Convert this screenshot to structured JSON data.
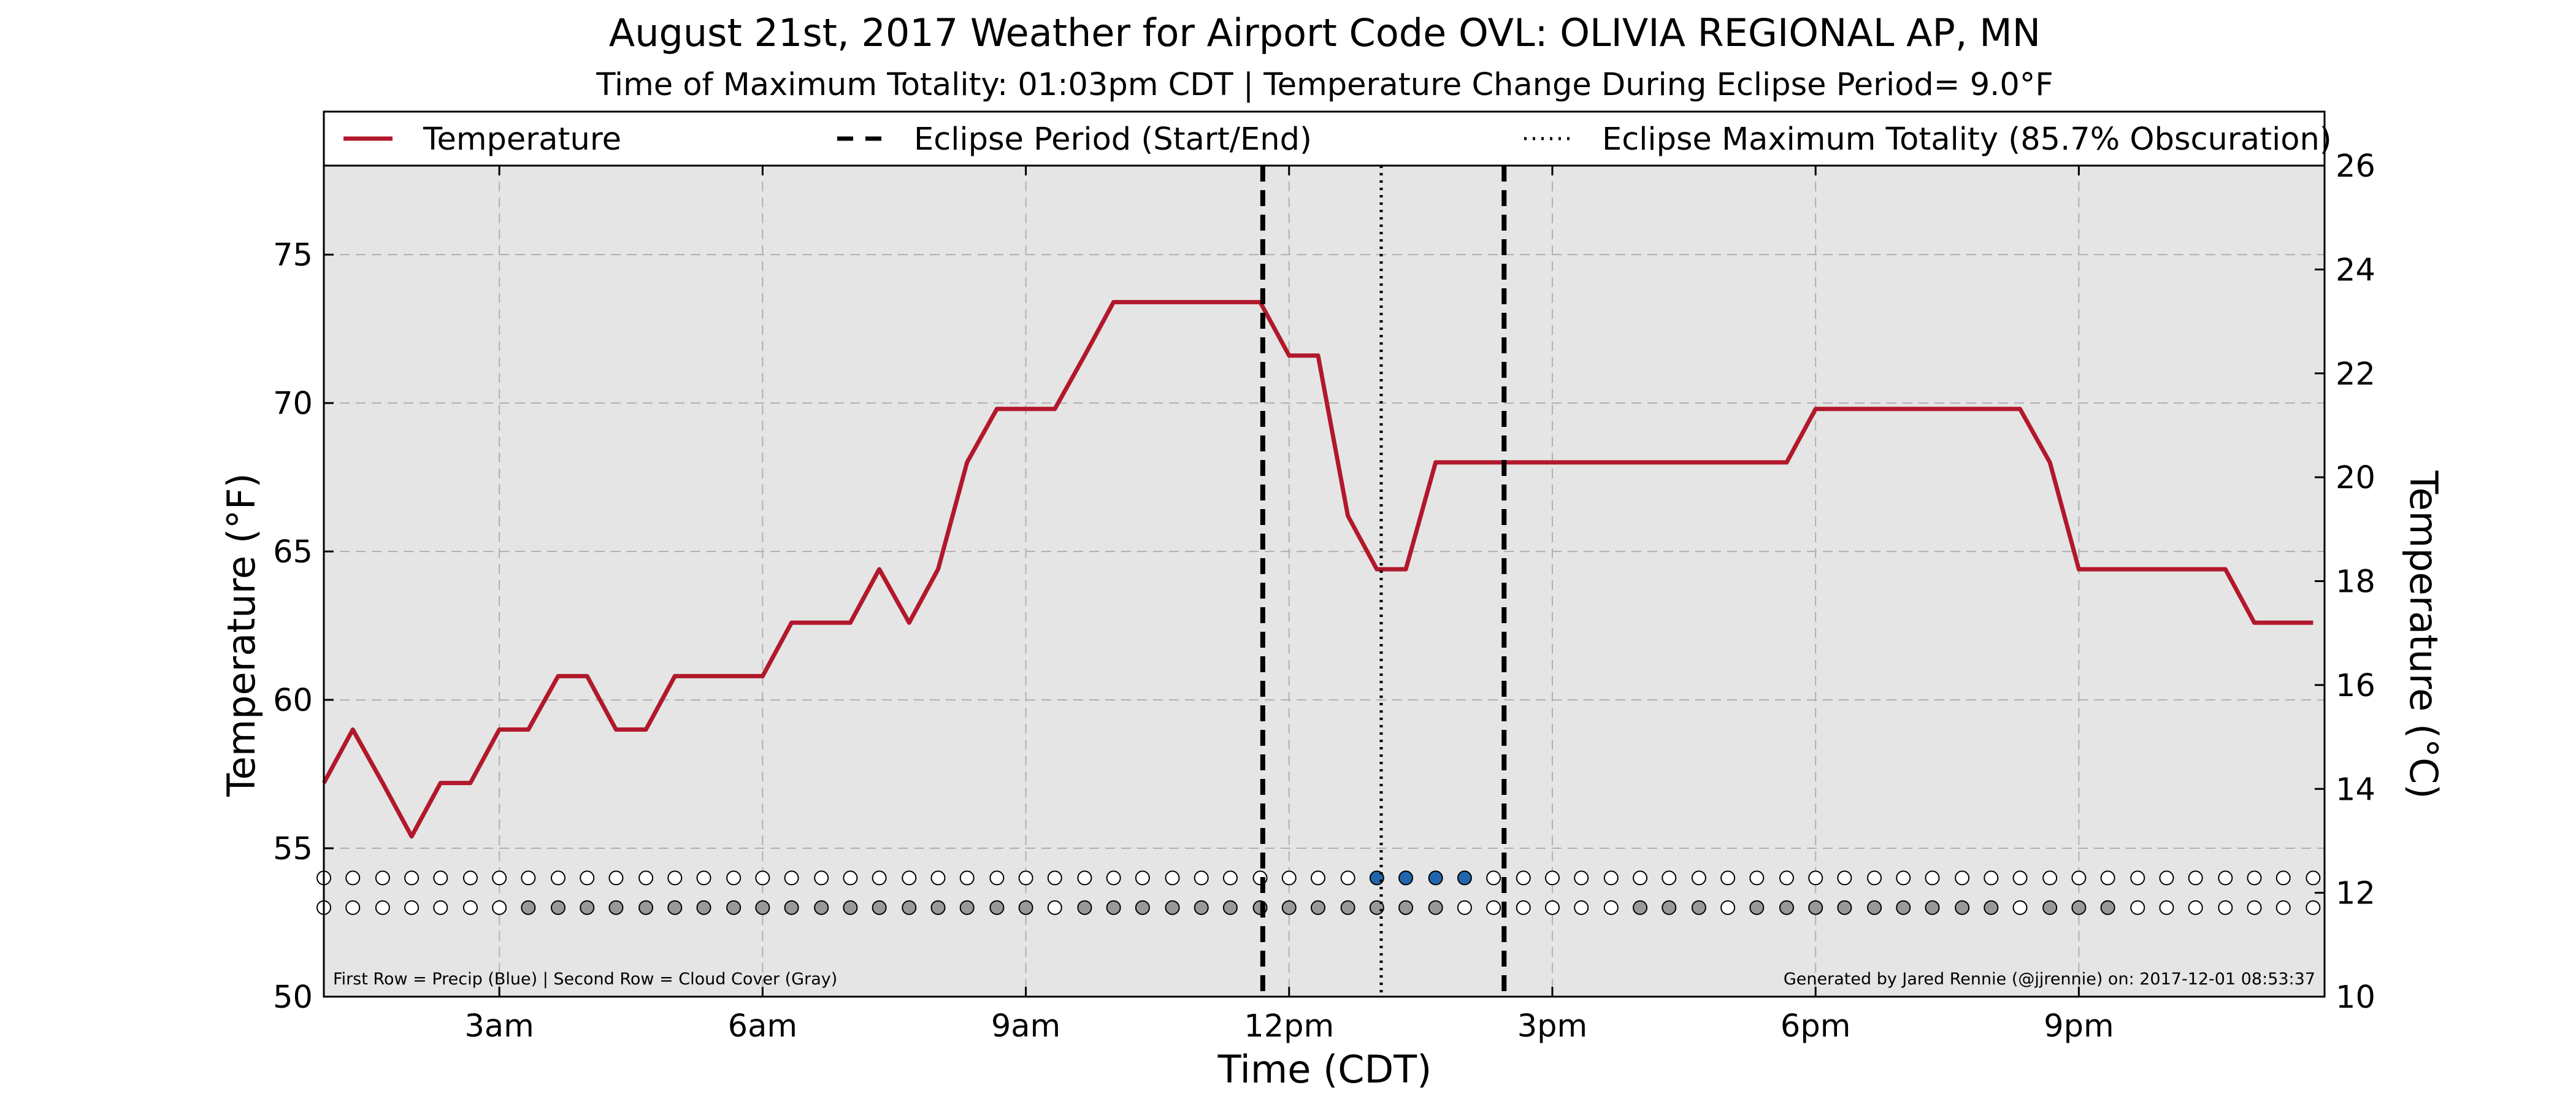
{
  "chart_data": {
    "type": "line",
    "title": "August 21st, 2017 Weather for Airport Code OVL: OLIVIA REGIONAL AP, MN",
    "subtitle": "Time of Maximum Totality: 01:03pm CDT | Temperature Change During Eclipse Period= 9.0°F",
    "xlabel": "Time (CDT)",
    "ylabel": "Temperature (°F)",
    "ylabel_right": "Temperature (°C)",
    "xlim": [
      1.0,
      23.8
    ],
    "ylim": [
      50,
      78
    ],
    "ylim_right": [
      10,
      26
    ],
    "x_ticks": [
      3,
      6,
      9,
      12,
      15,
      18,
      21
    ],
    "x_tick_labels": [
      "3am",
      "6am",
      "9am",
      "12pm",
      "3pm",
      "6pm",
      "9pm"
    ],
    "y_ticks": [
      50,
      55,
      60,
      65,
      70,
      75
    ],
    "y_tick_labels": [
      "50",
      "55",
      "60",
      "65",
      "70",
      "75"
    ],
    "y_ticks_right": [
      10,
      12,
      14,
      16,
      18,
      20,
      22,
      24,
      26
    ],
    "y_tick_labels_right": [
      "10",
      "12",
      "14",
      "16",
      "18",
      "20",
      "22",
      "24",
      "26"
    ],
    "grid": true,
    "legend_position": "top",
    "colors": {
      "plot_background": "#e5e5e5",
      "temperature_line": "#b2182b",
      "precip": "#2166ac",
      "cloud": "#999999",
      "empty_marker": "#ffffff",
      "grid": "#b0b0b0"
    },
    "legend": [
      {
        "label": "Temperature",
        "style": "solid",
        "color": "#b2182b"
      },
      {
        "label": "Eclipse Period (Start/End)",
        "style": "dashed",
        "color": "#000000"
      },
      {
        "label": "Eclipse Maximum Totality (85.7% Obscuration)",
        "style": "dotted",
        "color": "#000000"
      }
    ],
    "series": [
      {
        "name": "Temperature",
        "x": [
          1.0,
          1.33,
          1.67,
          2.0,
          2.33,
          2.67,
          3.0,
          3.33,
          3.67,
          4.0,
          4.33,
          4.67,
          5.0,
          5.33,
          5.67,
          6.0,
          6.33,
          6.67,
          7.0,
          7.33,
          7.67,
          8.0,
          8.33,
          8.67,
          9.0,
          9.33,
          9.67,
          10.0,
          10.33,
          10.67,
          11.0,
          11.33,
          11.67,
          12.0,
          12.33,
          12.67,
          13.0,
          13.33,
          13.67,
          14.0,
          14.33,
          14.67,
          15.0,
          15.33,
          15.67,
          16.0,
          16.33,
          16.67,
          17.0,
          17.33,
          17.67,
          18.0,
          18.33,
          18.67,
          19.0,
          19.33,
          19.67,
          20.0,
          20.33,
          20.67,
          21.0,
          21.33,
          21.67,
          22.0,
          22.33,
          22.67,
          23.0,
          23.33,
          23.67
        ],
        "values": [
          57.2,
          59.0,
          57.2,
          55.4,
          57.2,
          57.2,
          59.0,
          59.0,
          60.8,
          60.8,
          59.0,
          59.0,
          60.8,
          60.8,
          60.8,
          60.8,
          62.6,
          62.6,
          62.6,
          64.4,
          62.6,
          64.4,
          68.0,
          69.8,
          69.8,
          69.8,
          71.6,
          73.4,
          73.4,
          73.4,
          73.4,
          73.4,
          73.4,
          71.6,
          71.6,
          66.2,
          64.4,
          64.4,
          68.0,
          68.0,
          68.0,
          68.0,
          68.0,
          68.0,
          68.0,
          68.0,
          68.0,
          68.0,
          68.0,
          68.0,
          68.0,
          69.8,
          69.8,
          69.8,
          69.8,
          69.8,
          69.8,
          69.8,
          69.8,
          68.0,
          64.4,
          64.4,
          64.4,
          64.4,
          64.4,
          64.4,
          62.6,
          62.6,
          62.6
        ]
      }
    ],
    "eclipse_start": 11.7,
    "eclipse_end": 14.45,
    "max_totality": 13.05,
    "marker_rows": {
      "precip_y": 54.0,
      "cloud_y": 53.0,
      "x": [
        1.0,
        1.33,
        1.67,
        2.0,
        2.33,
        2.67,
        3.0,
        3.33,
        3.67,
        4.0,
        4.33,
        4.67,
        5.0,
        5.33,
        5.67,
        6.0,
        6.33,
        6.67,
        7.0,
        7.33,
        7.67,
        8.0,
        8.33,
        8.67,
        9.0,
        9.33,
        9.67,
        10.0,
        10.33,
        10.67,
        11.0,
        11.33,
        11.67,
        12.0,
        12.33,
        12.67,
        13.0,
        13.33,
        13.67,
        14.0,
        14.33,
        14.67,
        15.0,
        15.33,
        15.67,
        16.0,
        16.33,
        16.67,
        17.0,
        17.33,
        17.67,
        18.0,
        18.33,
        18.67,
        19.0,
        19.33,
        19.67,
        20.0,
        20.33,
        20.67,
        21.0,
        21.33,
        21.67,
        22.0,
        22.33,
        22.67,
        23.0,
        23.33,
        23.67
      ],
      "precip": [
        0,
        0,
        0,
        0,
        0,
        0,
        0,
        0,
        0,
        0,
        0,
        0,
        0,
        0,
        0,
        0,
        0,
        0,
        0,
        0,
        0,
        0,
        0,
        0,
        0,
        0,
        0,
        0,
        0,
        0,
        0,
        0,
        0,
        0,
        0,
        0,
        1,
        1,
        1,
        1,
        0,
        0,
        0,
        0,
        0,
        0,
        0,
        0,
        0,
        0,
        0,
        0,
        0,
        0,
        0,
        0,
        0,
        0,
        0,
        0,
        0,
        0,
        0,
        0,
        0,
        0,
        0,
        0,
        0
      ],
      "cloud": [
        0,
        0,
        0,
        0,
        0,
        0,
        0,
        1,
        1,
        1,
        1,
        1,
        1,
        1,
        1,
        1,
        1,
        1,
        1,
        1,
        1,
        1,
        1,
        1,
        1,
        0,
        1,
        1,
        1,
        1,
        1,
        1,
        1,
        1,
        1,
        1,
        1,
        1,
        1,
        0,
        0,
        0,
        0,
        0,
        0,
        1,
        1,
        1,
        0,
        1,
        1,
        1,
        1,
        1,
        1,
        1,
        1,
        1,
        0,
        1,
        1,
        1,
        0,
        0,
        0,
        0,
        0,
        0,
        0
      ]
    },
    "footnote_left": "First Row = Precip (Blue) | Second Row = Cloud Cover (Gray)",
    "footnote_right": "Generated by Jared Rennie (@jjrennie) on: 2017-12-01 08:53:37"
  }
}
